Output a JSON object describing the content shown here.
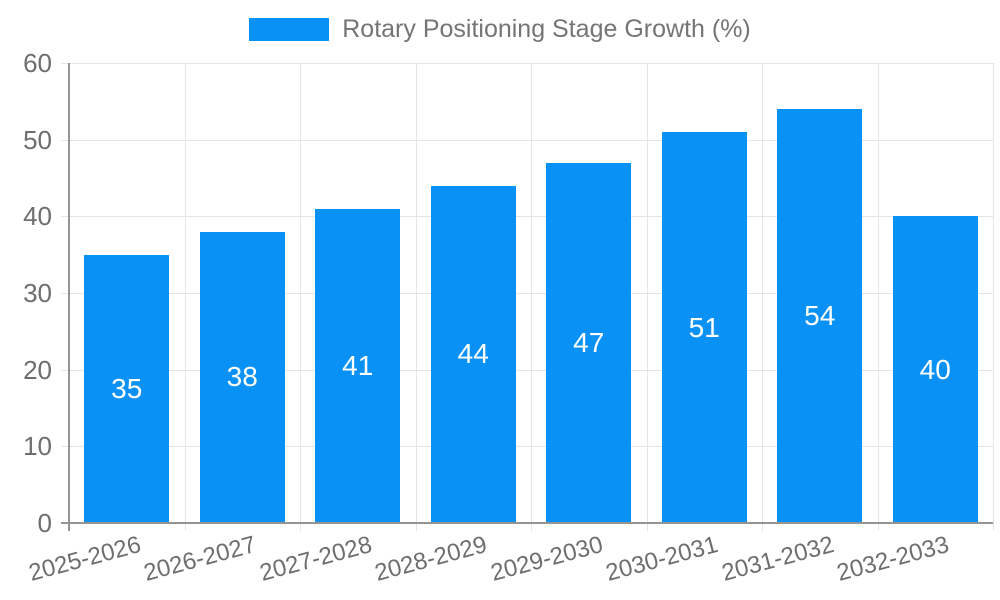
{
  "chart_data": {
    "type": "bar",
    "title": "",
    "legend": {
      "label": "Rotary Positioning Stage Growth (%)",
      "position": "top-center"
    },
    "categories": [
      "2025-2026",
      "2026-2027",
      "2027-2028",
      "2028-2029",
      "2029-2030",
      "2030-2031",
      "2031-2032",
      "2032-2033"
    ],
    "series": [
      {
        "name": "Rotary Positioning Stage Growth (%)",
        "values": [
          35,
          38,
          41,
          44,
          47,
          51,
          54,
          40
        ]
      }
    ],
    "value_labels": [
      "35",
      "38",
      "41",
      "44",
      "47",
      "51",
      "54",
      "40"
    ],
    "xlabel": "",
    "ylabel": "",
    "ylim": [
      0,
      60
    ],
    "yticks": [
      0,
      10,
      20,
      30,
      40,
      50,
      60
    ],
    "grid": true,
    "x_tick_rotation_deg": -15,
    "colors": {
      "bar": "#0A91F5",
      "bar_value_label": "#FFFFFF",
      "grid": "#E5E5E5",
      "axis": "#949494",
      "tick_text": "#6E6E6E",
      "legend_text": "#757575",
      "background": "#FFFFFF"
    }
  }
}
